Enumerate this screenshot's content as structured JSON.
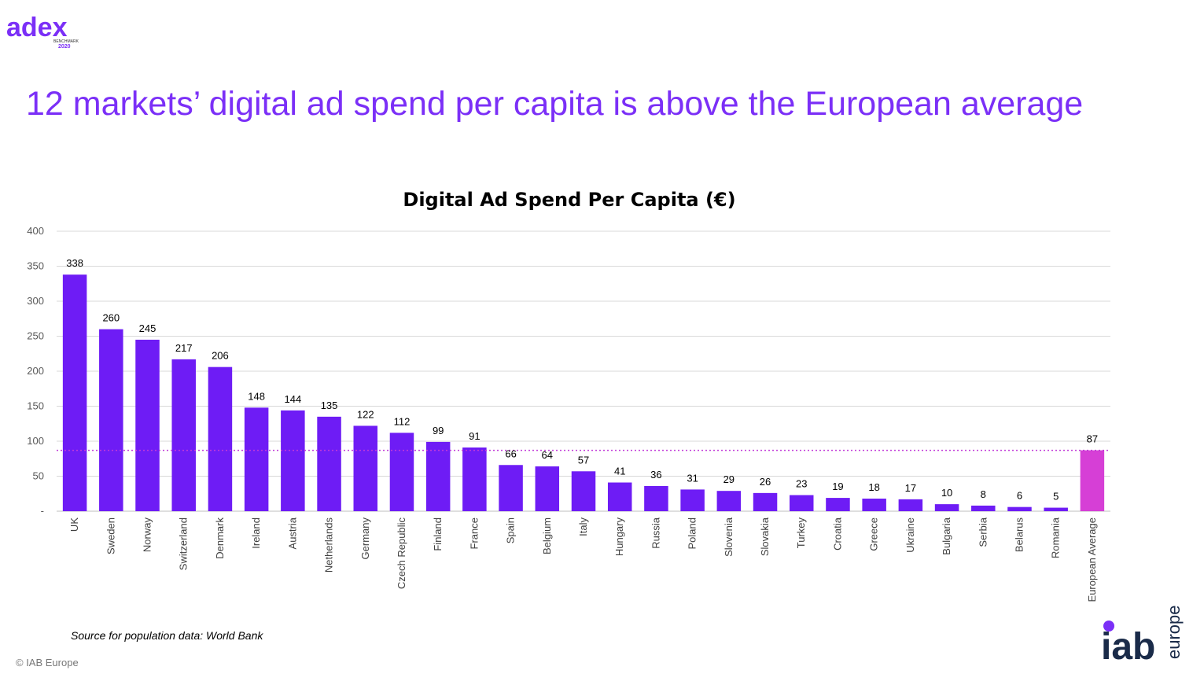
{
  "logo": {
    "wordmark": "adex",
    "subtitle": "BENCHMARK",
    "year": "2020"
  },
  "slide_title": "12 markets’ digital ad spend per capita is above the European average",
  "source_note": "Source for population data: World Bank",
  "copyright": "© IAB Europe",
  "iab_logo": {
    "main": "iab",
    "sub": "europe"
  },
  "colors": {
    "bar": "#6e1cf5",
    "average_bar": "#d63fd6",
    "average_line": "#c13ad8",
    "title": "#7b2ff7",
    "grid": "#d9d9d9"
  },
  "chart_data": {
    "type": "bar",
    "title": "Digital Ad Spend Per Capita (€)",
    "ylim": [
      0,
      400
    ],
    "yticks": [
      "-",
      "50",
      "100",
      "150",
      "200",
      "250",
      "300",
      "350",
      "400"
    ],
    "grid": true,
    "categories": [
      "UK",
      "Sweden",
      "Norway",
      "Switzerland",
      "Denmark",
      "Ireland",
      "Austria",
      "Netherlands",
      "Germany",
      "Czech Republic",
      "Finland",
      "France",
      "Spain",
      "Belgium",
      "Italy",
      "Hungary",
      "Russia",
      "Poland",
      "Slovenia",
      "Slovakia",
      "Turkey",
      "Croatia",
      "Greece",
      "Ukraine",
      "Bulgaria",
      "Serbia",
      "Belarus",
      "Romania",
      "European Average"
    ],
    "values": [
      338,
      260,
      245,
      217,
      206,
      148,
      144,
      135,
      122,
      112,
      99,
      91,
      66,
      64,
      57,
      41,
      36,
      31,
      29,
      26,
      23,
      19,
      18,
      17,
      10,
      8,
      6,
      5,
      87
    ],
    "average_value": 87
  }
}
